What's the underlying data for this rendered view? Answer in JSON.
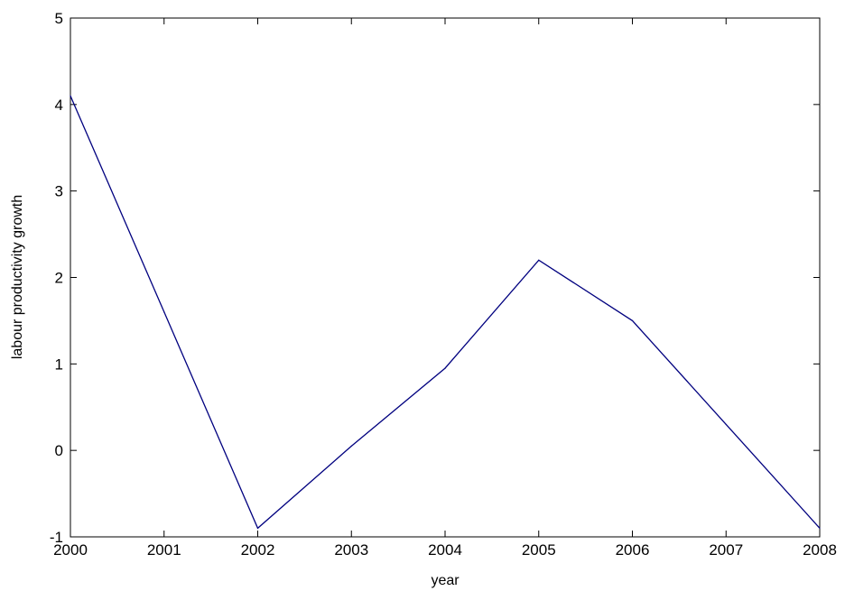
{
  "chart_data": {
    "type": "line",
    "title": "",
    "xlabel": "year",
    "ylabel": "labour productivity growth",
    "xlim": [
      2000,
      2008
    ],
    "ylim": [
      -1,
      5
    ],
    "xticks": [
      2000,
      2001,
      2002,
      2003,
      2004,
      2005,
      2006,
      2007,
      2008
    ],
    "yticks": [
      -1,
      0,
      1,
      2,
      3,
      4,
      5
    ],
    "grid": false,
    "legend": "none",
    "series": [
      {
        "color": "#00007f",
        "x": [
          2000,
          2001,
          2002,
          2003,
          2004,
          2005,
          2006,
          2007,
          2008
        ],
        "y": [
          4.1,
          1.6,
          -0.9,
          0.05,
          0.95,
          2.2,
          1.5,
          0.3,
          -0.9
        ]
      }
    ]
  }
}
